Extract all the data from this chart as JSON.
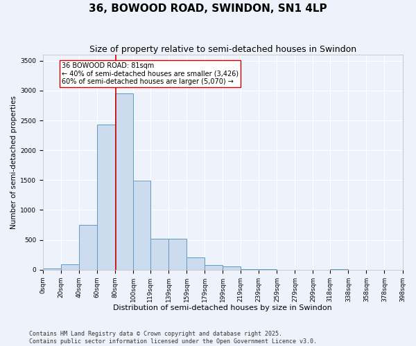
{
  "title": "36, BOWOOD ROAD, SWINDON, SN1 4LP",
  "subtitle": "Size of property relative to semi-detached houses in Swindon",
  "xlabel": "Distribution of semi-detached houses by size in Swindon",
  "ylabel": "Number of semi-detached properties",
  "bin_edges": [
    0,
    20,
    40,
    60,
    80,
    100,
    119,
    139,
    159,
    179,
    199,
    219,
    239,
    259,
    279,
    299,
    318,
    338,
    358,
    378,
    398
  ],
  "bar_heights": [
    15,
    90,
    750,
    2430,
    2950,
    1490,
    520,
    520,
    210,
    75,
    60,
    5,
    3,
    2,
    0,
    0,
    5,
    2,
    0,
    0
  ],
  "bar_color": "#ccdcee",
  "bar_edge_color": "#5d9ac5",
  "property_size": 81,
  "property_line_color": "#cc0000",
  "annotation_text": "36 BOWOOD ROAD: 81sqm\n← 40% of semi-detached houses are smaller (3,426)\n60% of semi-detached houses are larger (5,070) →",
  "annotation_box_color": "#cc0000",
  "annotation_box_fill": "white",
  "ylim": [
    0,
    3600
  ],
  "yticks": [
    0,
    500,
    1000,
    1500,
    2000,
    2500,
    3000,
    3500
  ],
  "background_color": "#eef2fb",
  "grid_color": "#ffffff",
  "footnote": "Contains HM Land Registry data © Crown copyright and database right 2025.\nContains public sector information licensed under the Open Government Licence v3.0.",
  "title_fontsize": 11,
  "subtitle_fontsize": 9,
  "xlabel_fontsize": 8,
  "ylabel_fontsize": 7.5,
  "tick_fontsize": 6.5,
  "annotation_fontsize": 7,
  "footnote_fontsize": 6
}
